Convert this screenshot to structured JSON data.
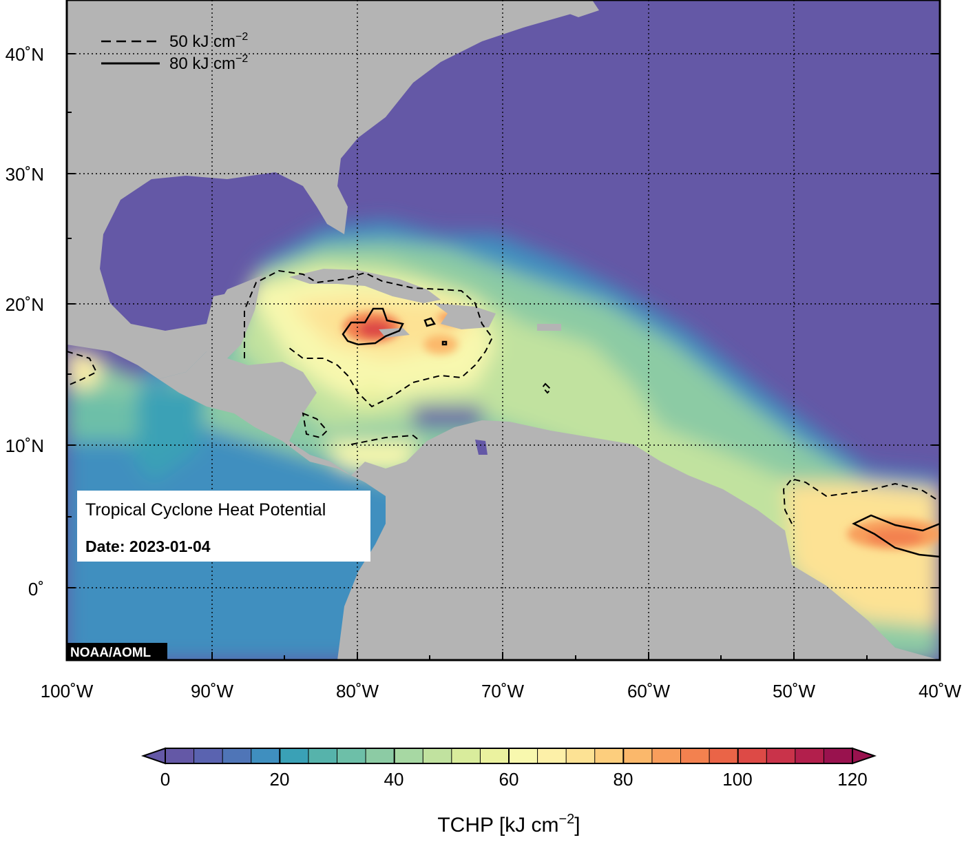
{
  "map": {
    "title": "Tropical Cyclone Heat Potential",
    "date_label": "Date: 2023-01-04",
    "credit": "NOAA/AOML",
    "extent": {
      "lon_min": -100,
      "lon_max": -40,
      "lat_min": -5,
      "lat_max": 45
    },
    "lon_ticks": [
      "100˚W",
      "90˚W",
      "80˚W",
      "70˚W",
      "60˚W",
      "50˚W",
      "40˚W"
    ],
    "lat_ticks": [
      "0˚",
      "10˚N",
      "20˚N",
      "30˚N",
      "40˚N"
    ],
    "legend": [
      {
        "style": "dashed",
        "label": "50 kJ cm",
        "sup": "−2"
      },
      {
        "style": "solid",
        "label": "80 kJ cm",
        "sup": "−2"
      }
    ],
    "colors": {
      "ocean_low": "#6458a6",
      "land": "#b4b4b4",
      "frame": "#000000"
    }
  },
  "colorbar": {
    "title": "TCHP [kJ cm",
    "title_sup": "−2",
    "title_end": "]",
    "ticks": [
      "0",
      "20",
      "40",
      "60",
      "80",
      "100",
      "120"
    ],
    "min": 0,
    "max": 120,
    "step": 5,
    "colors": [
      "#6458a6",
      "#5a63b0",
      "#4f75b7",
      "#3f8fbf",
      "#3aa1b6",
      "#56b3ab",
      "#6dbfa8",
      "#8ccba4",
      "#a7d8a3",
      "#c1e29f",
      "#d9ec9c",
      "#ebf29f",
      "#f8f8ae",
      "#fdf0a8",
      "#fde294",
      "#fdce7d",
      "#fbb86b",
      "#f89e5c",
      "#f3814f",
      "#ea6447",
      "#dd4a46",
      "#c9334a",
      "#b21f4c",
      "#99124e"
    ]
  }
}
